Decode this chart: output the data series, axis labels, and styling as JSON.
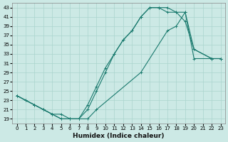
{
  "xlabel": "Humidex (Indice chaleur)",
  "bg_color": "#cce9e5",
  "line_color": "#1a7a6e",
  "grid_color": "#aad4ce",
  "xlim": [
    -0.5,
    23.5
  ],
  "ylim": [
    18,
    44
  ],
  "xticks": [
    0,
    1,
    2,
    3,
    4,
    5,
    6,
    7,
    8,
    9,
    10,
    11,
    12,
    13,
    14,
    15,
    16,
    17,
    18,
    19,
    20,
    21,
    22,
    23
  ],
  "yticks": [
    19,
    21,
    23,
    25,
    27,
    29,
    31,
    33,
    35,
    37,
    39,
    41,
    43
  ],
  "curves": [
    {
      "x": [
        0,
        1,
        2,
        3,
        4,
        5,
        6,
        7,
        8,
        9,
        10,
        11,
        12,
        13,
        14,
        15,
        16,
        17,
        18,
        19,
        20,
        22,
        23
      ],
      "y": [
        24,
        23,
        22,
        21,
        20,
        19,
        19,
        19,
        22,
        26,
        30,
        33,
        36,
        38,
        41,
        43,
        43,
        42,
        42,
        40,
        34,
        32,
        32
      ]
    },
    {
      "x": [
        0,
        1,
        2,
        3,
        4,
        5,
        6,
        7,
        8,
        9,
        10,
        11,
        12,
        13,
        14,
        15,
        16,
        17,
        18,
        19,
        20,
        22,
        23
      ],
      "y": [
        24,
        23,
        22,
        21,
        20,
        19,
        19,
        19,
        21,
        25,
        29,
        33,
        36,
        38,
        41,
        43,
        43,
        43,
        42,
        42,
        34,
        32,
        32
      ]
    },
    {
      "x": [
        0,
        2,
        3,
        4,
        5,
        6,
        7,
        8,
        9,
        14,
        17,
        18,
        19,
        20,
        22,
        23
      ],
      "y": [
        24,
        22,
        21,
        20,
        20,
        19,
        19,
        19,
        21,
        29,
        38,
        39,
        42,
        32,
        32,
        32
      ]
    }
  ]
}
